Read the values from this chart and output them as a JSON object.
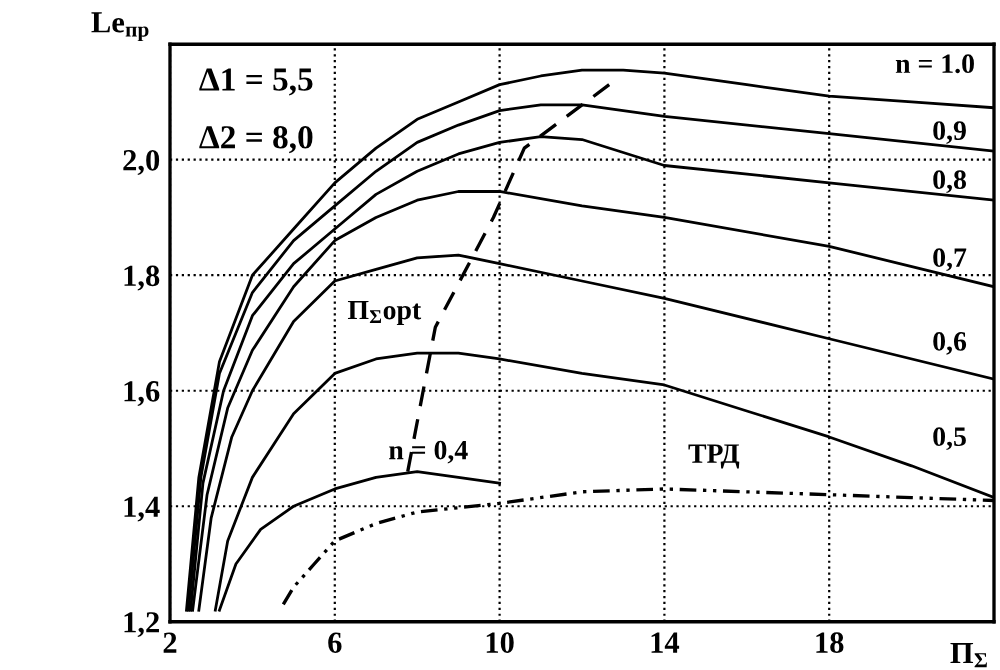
{
  "chart_data": {
    "type": "line",
    "xlabel": "П$_{Σ}$",
    "ylabel": "Le$_{пр}$",
    "xlim": [
      2,
      22
    ],
    "ylim": [
      1.2,
      2.2
    ],
    "xticks": [
      2,
      6,
      10,
      14,
      18
    ],
    "yticks": [
      {
        "value": 1.2,
        "label": "1,2"
      },
      {
        "value": 1.4,
        "label": "1,4"
      },
      {
        "value": 1.6,
        "label": "1,6"
      },
      {
        "value": 1.8,
        "label": "1,8"
      },
      {
        "value": 2.0,
        "label": "2,0"
      }
    ],
    "grid": true,
    "legend": false,
    "marker": "none",
    "annotations": [
      "Δ1 = 5,5",
      "Δ2 = 8,0"
    ],
    "series": [
      {
        "name": "n = 1.0",
        "color": "#000000",
        "line_style": "solid",
        "x": [
          2.4,
          2.7,
          3.2,
          4,
          5,
          6,
          7,
          8,
          9,
          10,
          11,
          12,
          13,
          14,
          16,
          18,
          20,
          22
        ],
        "values": [
          1.22,
          1.45,
          1.65,
          1.8,
          1.88,
          1.96,
          2.02,
          2.07,
          2.1,
          2.13,
          2.145,
          2.155,
          2.155,
          2.15,
          2.13,
          2.11,
          2.1,
          2.09
        ]
      },
      {
        "name": "0,9",
        "color": "#000000",
        "line_style": "solid",
        "x": [
          2.45,
          2.75,
          3.2,
          4,
          5,
          6,
          7,
          8,
          9,
          10,
          11,
          12,
          14,
          18,
          22
        ],
        "values": [
          1.22,
          1.45,
          1.63,
          1.77,
          1.86,
          1.92,
          1.98,
          2.03,
          2.06,
          2.085,
          2.095,
          2.095,
          2.075,
          2.045,
          2.015
        ]
      },
      {
        "name": "0,8",
        "color": "#000000",
        "line_style": "solid",
        "x": [
          2.5,
          2.8,
          3.3,
          4,
          5,
          6,
          7,
          8,
          9,
          10,
          11,
          12,
          14,
          18,
          22
        ],
        "values": [
          1.22,
          1.44,
          1.6,
          1.73,
          1.82,
          1.88,
          1.94,
          1.98,
          2.01,
          2.03,
          2.04,
          2.035,
          1.99,
          1.96,
          1.93
        ]
      },
      {
        "name": "0,7",
        "color": "#000000",
        "line_style": "solid",
        "x": [
          2.55,
          2.9,
          3.4,
          4,
          5,
          6,
          7,
          8,
          9,
          10,
          12,
          14,
          18,
          22
        ],
        "values": [
          1.22,
          1.42,
          1.57,
          1.67,
          1.78,
          1.86,
          1.9,
          1.93,
          1.945,
          1.945,
          1.92,
          1.9,
          1.85,
          1.78
        ]
      },
      {
        "name": "0,6",
        "color": "#000000",
        "line_style": "solid",
        "x": [
          2.7,
          3.0,
          3.5,
          4,
          5,
          6,
          7,
          8,
          9,
          10,
          12,
          14,
          18,
          22
        ],
        "values": [
          1.22,
          1.38,
          1.52,
          1.6,
          1.72,
          1.79,
          1.81,
          1.83,
          1.835,
          1.82,
          1.79,
          1.76,
          1.69,
          1.62
        ]
      },
      {
        "name": "0,5",
        "color": "#000000",
        "line_style": "solid",
        "x": [
          3.1,
          3.4,
          4,
          5,
          6,
          7,
          8,
          9,
          10,
          12,
          14,
          16,
          18,
          20,
          22
        ],
        "values": [
          1.22,
          1.34,
          1.45,
          1.56,
          1.63,
          1.655,
          1.665,
          1.665,
          1.655,
          1.63,
          1.61,
          1.565,
          1.52,
          1.47,
          1.415
        ]
      },
      {
        "name": "n = 0,4",
        "color": "#000000",
        "line_style": "solid",
        "x": [
          3.2,
          3.6,
          4.2,
          5,
          6,
          7,
          8,
          9,
          10
        ],
        "values": [
          1.22,
          1.3,
          1.36,
          1.4,
          1.43,
          1.45,
          1.46,
          1.45,
          1.44
        ]
      },
      {
        "name": "ТРД",
        "color": "#000000",
        "line_style": "dotted",
        "x": [
          4.75,
          5,
          5.5,
          6,
          7,
          8,
          10,
          12,
          14,
          16,
          18,
          20,
          22
        ],
        "values": [
          1.23,
          1.26,
          1.3,
          1.34,
          1.37,
          1.39,
          1.405,
          1.425,
          1.43,
          1.425,
          1.42,
          1.415,
          1.41
        ]
      },
      {
        "name": "Π$_{Σ}$opt",
        "color": "#000000",
        "line_style": "dashed",
        "x": [
          7.77,
          8.44,
          9.85,
          10.6,
          12.66
        ],
        "values": [
          1.46,
          1.71,
          1.9,
          2.02,
          2.13
        ]
      }
    ]
  }
}
